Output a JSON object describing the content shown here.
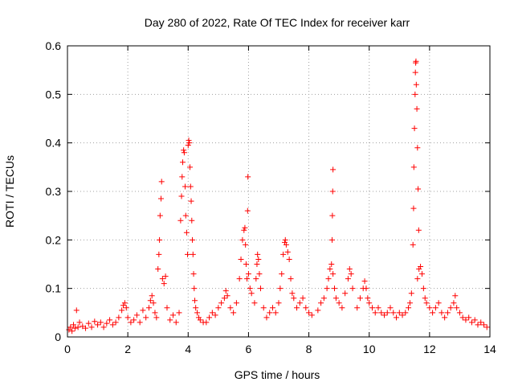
{
  "chart_data": {
    "type": "scatter",
    "title": "Day 280 of 2022, Rate Of TEC Index for receiver karr",
    "xlabel": "GPS time / hours",
    "ylabel": "ROTI / TECUs",
    "xlim": [
      0,
      14
    ],
    "ylim": [
      0,
      0.6
    ],
    "xticks": [
      0,
      2,
      4,
      6,
      8,
      10,
      12,
      14
    ],
    "yticks": [
      0,
      0.1,
      0.2,
      0.3,
      0.4,
      0.5,
      0.6
    ],
    "xtick_labels": [
      "0",
      "2",
      "4",
      "6",
      "8",
      "10",
      "12",
      "14"
    ],
    "ytick_labels": [
      "0",
      "0.1",
      "0.2",
      "0.3",
      "0.4",
      "0.5",
      "0.6"
    ],
    "grid": true,
    "marker": "+",
    "color": "#ff0000",
    "series": [
      {
        "name": "ROTI",
        "points": [
          [
            0.05,
            0.015
          ],
          [
            0.1,
            0.02
          ],
          [
            0.15,
            0.012
          ],
          [
            0.2,
            0.025
          ],
          [
            0.25,
            0.018
          ],
          [
            0.3,
            0.055
          ],
          [
            0.35,
            0.02
          ],
          [
            0.4,
            0.03
          ],
          [
            0.5,
            0.022
          ],
          [
            0.6,
            0.018
          ],
          [
            0.7,
            0.028
          ],
          [
            0.8,
            0.02
          ],
          [
            0.9,
            0.032
          ],
          [
            1.0,
            0.025
          ],
          [
            1.1,
            0.03
          ],
          [
            1.2,
            0.02
          ],
          [
            1.3,
            0.028
          ],
          [
            1.4,
            0.035
          ],
          [
            1.5,
            0.025
          ],
          [
            1.6,
            0.03
          ],
          [
            1.7,
            0.04
          ],
          [
            1.8,
            0.055
          ],
          [
            1.85,
            0.065
          ],
          [
            1.9,
            0.07
          ],
          [
            1.95,
            0.06
          ],
          [
            2.0,
            0.04
          ],
          [
            2.1,
            0.03
          ],
          [
            2.2,
            0.035
          ],
          [
            2.3,
            0.045
          ],
          [
            2.4,
            0.03
          ],
          [
            2.5,
            0.055
          ],
          [
            2.6,
            0.04
          ],
          [
            2.7,
            0.06
          ],
          [
            2.75,
            0.075
          ],
          [
            2.8,
            0.085
          ],
          [
            2.85,
            0.07
          ],
          [
            2.9,
            0.05
          ],
          [
            2.95,
            0.04
          ],
          [
            3.0,
            0.14
          ],
          [
            3.03,
            0.17
          ],
          [
            3.05,
            0.2
          ],
          [
            3.07,
            0.25
          ],
          [
            3.1,
            0.285
          ],
          [
            3.12,
            0.32
          ],
          [
            3.15,
            0.12
          ],
          [
            3.2,
            0.11
          ],
          [
            3.25,
            0.125
          ],
          [
            3.3,
            0.06
          ],
          [
            3.4,
            0.035
          ],
          [
            3.5,
            0.045
          ],
          [
            3.6,
            0.03
          ],
          [
            3.7,
            0.05
          ],
          [
            3.75,
            0.24
          ],
          [
            3.78,
            0.29
          ],
          [
            3.8,
            0.33
          ],
          [
            3.82,
            0.36
          ],
          [
            3.85,
            0.385
          ],
          [
            3.87,
            0.38
          ],
          [
            3.9,
            0.31
          ],
          [
            3.92,
            0.25
          ],
          [
            3.95,
            0.215
          ],
          [
            3.98,
            0.17
          ],
          [
            4.0,
            0.395
          ],
          [
            4.02,
            0.405
          ],
          [
            4.04,
            0.4
          ],
          [
            4.06,
            0.35
          ],
          [
            4.08,
            0.31
          ],
          [
            4.1,
            0.28
          ],
          [
            4.12,
            0.24
          ],
          [
            4.14,
            0.2
          ],
          [
            4.16,
            0.17
          ],
          [
            4.18,
            0.13
          ],
          [
            4.2,
            0.1
          ],
          [
            4.22,
            0.075
          ],
          [
            4.25,
            0.06
          ],
          [
            4.3,
            0.05
          ],
          [
            4.35,
            0.04
          ],
          [
            4.4,
            0.035
          ],
          [
            4.5,
            0.03
          ],
          [
            4.6,
            0.03
          ],
          [
            4.7,
            0.04
          ],
          [
            4.8,
            0.05
          ],
          [
            4.9,
            0.045
          ],
          [
            5.0,
            0.06
          ],
          [
            5.1,
            0.07
          ],
          [
            5.2,
            0.08
          ],
          [
            5.25,
            0.095
          ],
          [
            5.3,
            0.085
          ],
          [
            5.4,
            0.06
          ],
          [
            5.5,
            0.05
          ],
          [
            5.6,
            0.07
          ],
          [
            5.7,
            0.12
          ],
          [
            5.75,
            0.16
          ],
          [
            5.8,
            0.2
          ],
          [
            5.85,
            0.22
          ],
          [
            5.88,
            0.225
          ],
          [
            5.9,
            0.19
          ],
          [
            5.92,
            0.15
          ],
          [
            5.95,
            0.12
          ],
          [
            5.97,
            0.26
          ],
          [
            5.98,
            0.33
          ],
          [
            6.0,
            0.13
          ],
          [
            6.05,
            0.1
          ],
          [
            6.1,
            0.09
          ],
          [
            6.2,
            0.07
          ],
          [
            6.25,
            0.12
          ],
          [
            6.28,
            0.15
          ],
          [
            6.3,
            0.17
          ],
          [
            6.33,
            0.16
          ],
          [
            6.36,
            0.13
          ],
          [
            6.4,
            0.1
          ],
          [
            6.5,
            0.06
          ],
          [
            6.6,
            0.04
          ],
          [
            6.7,
            0.05
          ],
          [
            6.8,
            0.06
          ],
          [
            6.9,
            0.05
          ],
          [
            7.0,
            0.07
          ],
          [
            7.05,
            0.1
          ],
          [
            7.1,
            0.13
          ],
          [
            7.15,
            0.17
          ],
          [
            7.2,
            0.195
          ],
          [
            7.22,
            0.2
          ],
          [
            7.25,
            0.19
          ],
          [
            7.3,
            0.175
          ],
          [
            7.35,
            0.16
          ],
          [
            7.4,
            0.12
          ],
          [
            7.45,
            0.09
          ],
          [
            7.5,
            0.08
          ],
          [
            7.6,
            0.06
          ],
          [
            7.7,
            0.07
          ],
          [
            7.8,
            0.08
          ],
          [
            7.9,
            0.06
          ],
          [
            8.0,
            0.05
          ],
          [
            8.1,
            0.045
          ],
          [
            8.3,
            0.055
          ],
          [
            8.4,
            0.07
          ],
          [
            8.5,
            0.08
          ],
          [
            8.6,
            0.1
          ],
          [
            8.65,
            0.12
          ],
          [
            8.7,
            0.14
          ],
          [
            8.75,
            0.15
          ],
          [
            8.8,
            0.13
          ],
          [
            8.85,
            0.1
          ],
          [
            8.77,
            0.2
          ],
          [
            8.78,
            0.25
          ],
          [
            8.79,
            0.3
          ],
          [
            8.8,
            0.345
          ],
          [
            8.9,
            0.08
          ],
          [
            9.0,
            0.07
          ],
          [
            9.1,
            0.06
          ],
          [
            9.2,
            0.09
          ],
          [
            9.3,
            0.12
          ],
          [
            9.35,
            0.14
          ],
          [
            9.4,
            0.13
          ],
          [
            9.45,
            0.1
          ],
          [
            9.6,
            0.06
          ],
          [
            9.7,
            0.08
          ],
          [
            9.8,
            0.1
          ],
          [
            9.85,
            0.115
          ],
          [
            9.9,
            0.1
          ],
          [
            9.95,
            0.08
          ],
          [
            10.0,
            0.07
          ],
          [
            10.1,
            0.06
          ],
          [
            10.2,
            0.05
          ],
          [
            10.3,
            0.06
          ],
          [
            10.4,
            0.05
          ],
          [
            10.5,
            0.045
          ],
          [
            10.6,
            0.05
          ],
          [
            10.7,
            0.06
          ],
          [
            10.8,
            0.05
          ],
          [
            10.9,
            0.04
          ],
          [
            11.0,
            0.05
          ],
          [
            11.1,
            0.045
          ],
          [
            11.2,
            0.05
          ],
          [
            11.3,
            0.06
          ],
          [
            11.35,
            0.07
          ],
          [
            11.4,
            0.09
          ],
          [
            11.45,
            0.19
          ],
          [
            11.47,
            0.265
          ],
          [
            11.48,
            0.35
          ],
          [
            11.5,
            0.43
          ],
          [
            11.52,
            0.5
          ],
          [
            11.53,
            0.545
          ],
          [
            11.54,
            0.565
          ],
          [
            11.55,
            0.568
          ],
          [
            11.56,
            0.52
          ],
          [
            11.58,
            0.47
          ],
          [
            11.6,
            0.39
          ],
          [
            11.62,
            0.305
          ],
          [
            11.64,
            0.22
          ],
          [
            11.6,
            0.12
          ],
          [
            11.65,
            0.14
          ],
          [
            11.7,
            0.145
          ],
          [
            11.75,
            0.13
          ],
          [
            11.8,
            0.1
          ],
          [
            11.85,
            0.08
          ],
          [
            11.9,
            0.07
          ],
          [
            12.0,
            0.06
          ],
          [
            12.1,
            0.05
          ],
          [
            12.2,
            0.06
          ],
          [
            12.3,
            0.07
          ],
          [
            12.4,
            0.05
          ],
          [
            12.5,
            0.04
          ],
          [
            12.6,
            0.05
          ],
          [
            12.7,
            0.06
          ],
          [
            12.8,
            0.07
          ],
          [
            12.85,
            0.085
          ],
          [
            12.9,
            0.06
          ],
          [
            13.0,
            0.05
          ],
          [
            13.1,
            0.04
          ],
          [
            13.2,
            0.035
          ],
          [
            13.3,
            0.04
          ],
          [
            13.4,
            0.03
          ],
          [
            13.5,
            0.035
          ],
          [
            13.6,
            0.025
          ],
          [
            13.7,
            0.03
          ],
          [
            13.8,
            0.025
          ],
          [
            13.9,
            0.02
          ]
        ]
      }
    ]
  }
}
